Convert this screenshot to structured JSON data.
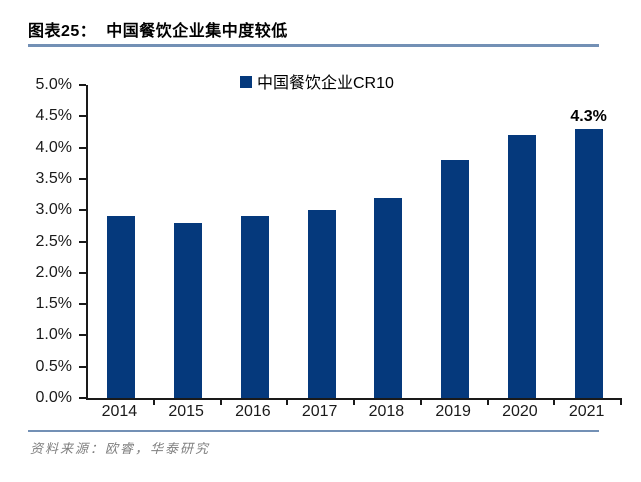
{
  "header": {
    "title": "图表25：  中国餐饮企业集中度较低"
  },
  "chart_data": {
    "type": "bar",
    "title": "图表25：中国餐饮企业集中度较低",
    "legend": "中国餐饮企业CR10",
    "legend_position": "top-center",
    "categories": [
      "2014",
      "2015",
      "2016",
      "2017",
      "2018",
      "2019",
      "2020",
      "2021"
    ],
    "values": [
      2.9,
      2.8,
      2.9,
      3.0,
      3.2,
      3.8,
      4.2,
      4.3
    ],
    "unit": "%",
    "ylim": [
      0,
      5
    ],
    "ytick_step": 0.5,
    "ytick_labels": [
      "0.0%",
      "0.5%",
      "1.0%",
      "1.5%",
      "2.0%",
      "2.5%",
      "3.0%",
      "3.5%",
      "4.0%",
      "4.5%",
      "5.0%"
    ],
    "xlabel": "",
    "ylabel": "",
    "grid": false,
    "annotation": {
      "category": "2021",
      "text": "4.3%"
    }
  },
  "footer": {
    "source": "资料来源：欧睿，华泰研究"
  },
  "colors": {
    "bar": "#05397c",
    "rule_blue": "#7390b5",
    "axis": "#1a1a1a",
    "source_text": "#7f7f7f"
  }
}
